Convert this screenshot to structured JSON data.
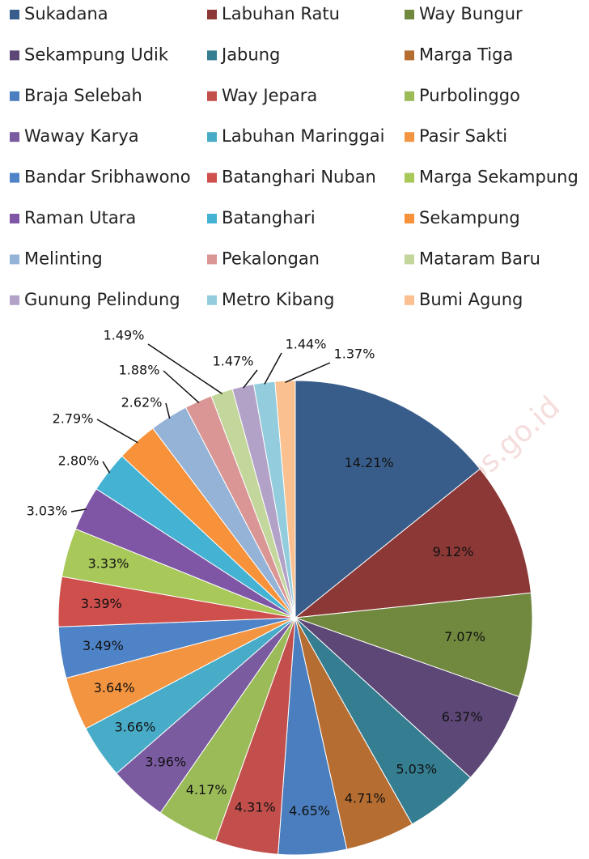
{
  "chart_data": {
    "type": "pie",
    "categories": [
      "Sukadana",
      "Labuhan Ratu",
      "Way Bungur",
      "Sekampung Udik",
      "Jabung",
      "Marga Tiga",
      "Braja Selebah",
      "Way Jepara",
      "Purbolinggo",
      "Waway Karya",
      "Labuhan Maringgai",
      "Pasir Sakti",
      "Bandar Sribhawono",
      "Batanghari Nuban",
      "Marga Sekampung",
      "Raman Utara",
      "Batanghari",
      "Sekampung",
      "Melinting",
      "Pekalongan",
      "Mataram Baru",
      "Gunung Pelindung",
      "Metro Kibang",
      "Bumi Agung"
    ],
    "values": [
      14.21,
      9.12,
      7.07,
      6.37,
      5.03,
      4.71,
      4.65,
      4.31,
      4.17,
      3.96,
      3.66,
      3.64,
      3.49,
      3.39,
      3.33,
      3.03,
      2.8,
      2.79,
      2.62,
      1.88,
      1.49,
      1.47,
      1.44,
      1.37
    ],
    "value_labels": [
      "14.21%",
      "9.12%",
      "7.07%",
      "6.37%",
      "5.03%",
      "4.71%",
      "4.65%",
      "4.31%",
      "4.17%",
      "3.96%",
      "3.66%",
      "3.64%",
      "3.49%",
      "3.39%",
      "3.33%",
      "3.03%",
      "2.80%",
      "2.79%",
      "2.62%",
      "1.88%",
      "1.49%",
      "1.47%",
      "1.44%",
      "1.37%"
    ],
    "colors": [
      "#385d8a",
      "#8c3836",
      "#71893f",
      "#5c4776",
      "#357d91",
      "#b66d31",
      "#4a7ebf",
      "#c24f4c",
      "#9bbb59",
      "#7a5ba0",
      "#48acc8",
      "#f29440",
      "#4f83c7",
      "#cf4f4d",
      "#a8c85a",
      "#7f56a6",
      "#44b2d2",
      "#f7923a",
      "#95b3d7",
      "#d99694",
      "#c3d69b",
      "#b3a2c7",
      "#93cddd",
      "#fac090"
    ],
    "legend": "top",
    "watermark": "ps://lampungtimurkab.bps.go.id"
  }
}
